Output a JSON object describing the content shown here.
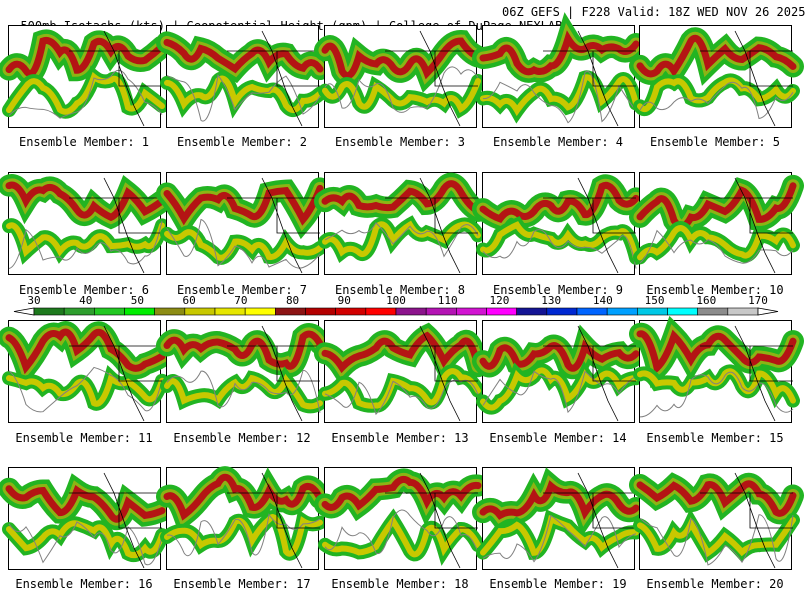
{
  "header": {
    "left": "500mb Isotachs (kts) | Geopotential Height (gpm) | College of DuPage NEXLAB",
    "right": "06Z GEFS | F228 Valid: 18Z WED NOV 26 2025"
  },
  "members": [
    "Ensemble Member: 1",
    "Ensemble Member: 2",
    "Ensemble Member: 3",
    "Ensemble Member: 4",
    "Ensemble Member: 5",
    "Ensemble Member: 6",
    "Ensemble Member: 7",
    "Ensemble Member: 8",
    "Ensemble Member: 9",
    "Ensemble Member: 10",
    "Ensemble Member: 11",
    "Ensemble Member: 12",
    "Ensemble Member: 13",
    "Ensemble Member: 14",
    "Ensemble Member: 15",
    "Ensemble Member: 16",
    "Ensemble Member: 17",
    "Ensemble Member: 18",
    "Ensemble Member: 19",
    "Ensemble Member: 20"
  ],
  "colorbar": {
    "ticks": [
      "30",
      "40",
      "50",
      "60",
      "70",
      "80",
      "90",
      "100",
      "110",
      "120",
      "130",
      "140",
      "150",
      "160",
      "170"
    ],
    "colors": [
      "#1e7a1e",
      "#2e9e2e",
      "#22c822",
      "#00ee00",
      "#8c8c14",
      "#c8c800",
      "#e6e600",
      "#ffff00",
      "#8c1414",
      "#b40000",
      "#d20000",
      "#ff0000",
      "#8c148c",
      "#b414b4",
      "#d214d2",
      "#ff00ff",
      "#141494",
      "#0028d2",
      "#0064ff",
      "#00a0ff",
      "#00c8e6",
      "#00ffff",
      "#8c8c8c",
      "#c8c8c8"
    ]
  }
}
